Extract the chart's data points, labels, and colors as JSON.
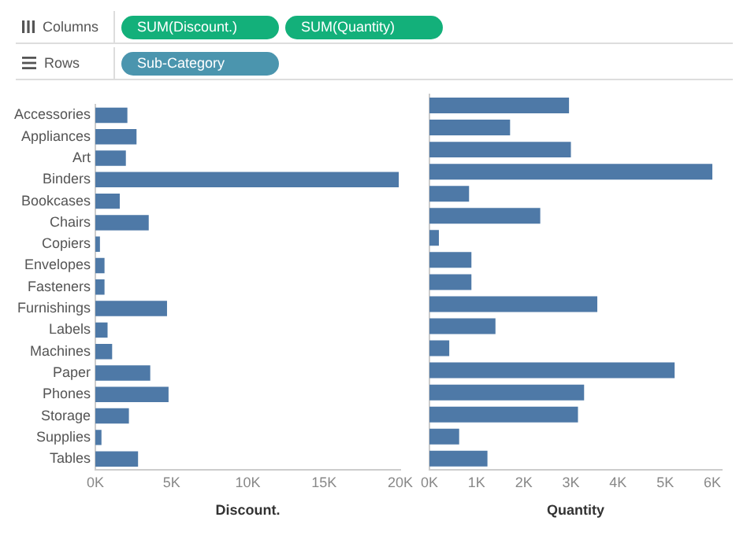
{
  "chart_data": [
    {
      "type": "bar",
      "orientation": "horizontal",
      "xlabel": "Discount.",
      "color": "#4e79a7",
      "grid": false,
      "legend": false,
      "categories": [
        "Accessories",
        "Appliances",
        "Art",
        "Binders",
        "Bookcases",
        "Chairs",
        "Copiers",
        "Envelopes",
        "Fasteners",
        "Furnishings",
        "Labels",
        "Machines",
        "Paper",
        "Phones",
        "Storage",
        "Supplies",
        "Tables"
      ],
      "values": [
        2100,
        2700,
        2000,
        19900,
        1600,
        3500,
        300,
        600,
        600,
        4700,
        800,
        1100,
        3600,
        4800,
        2200,
        400,
        2800
      ],
      "xlim": [
        0,
        20000
      ],
      "xticks": [
        {
          "value": 0,
          "label": "0K"
        },
        {
          "value": 5000,
          "label": "5K"
        },
        {
          "value": 10000,
          "label": "10K"
        },
        {
          "value": 15000,
          "label": "15K"
        },
        {
          "value": 20000,
          "label": "20K"
        }
      ],
      "annotations": [
        "Columns",
        "SUM(Discount.)",
        "SUM(Quantity)",
        "Rows",
        "Sub-Category"
      ]
    },
    {
      "type": "bar",
      "orientation": "horizontal",
      "xlabel": "Quantity",
      "color": "#4e79a7",
      "grid": false,
      "legend": false,
      "tick_labels": "x",
      "categories": [
        null,
        null,
        null,
        null,
        null,
        null,
        null,
        null,
        null,
        null,
        null,
        null,
        null,
        null,
        null,
        null,
        null
      ],
      "values": [
        2960,
        1710,
        3000,
        6000,
        840,
        2350,
        200,
        890,
        890,
        3560,
        1400,
        420,
        5200,
        3280,
        3150,
        630,
        1230
      ],
      "xlim": [
        0,
        6200
      ],
      "xticks": [
        {
          "value": 0,
          "label": "0K"
        },
        {
          "value": 1000,
          "label": "1K"
        },
        {
          "value": 2000,
          "label": "2K"
        },
        {
          "value": 3000,
          "label": "3K"
        },
        {
          "value": 4000,
          "label": "4K"
        },
        {
          "value": 5000,
          "label": "5K"
        },
        {
          "value": 6000,
          "label": "6K"
        }
      ]
    }
  ]
}
